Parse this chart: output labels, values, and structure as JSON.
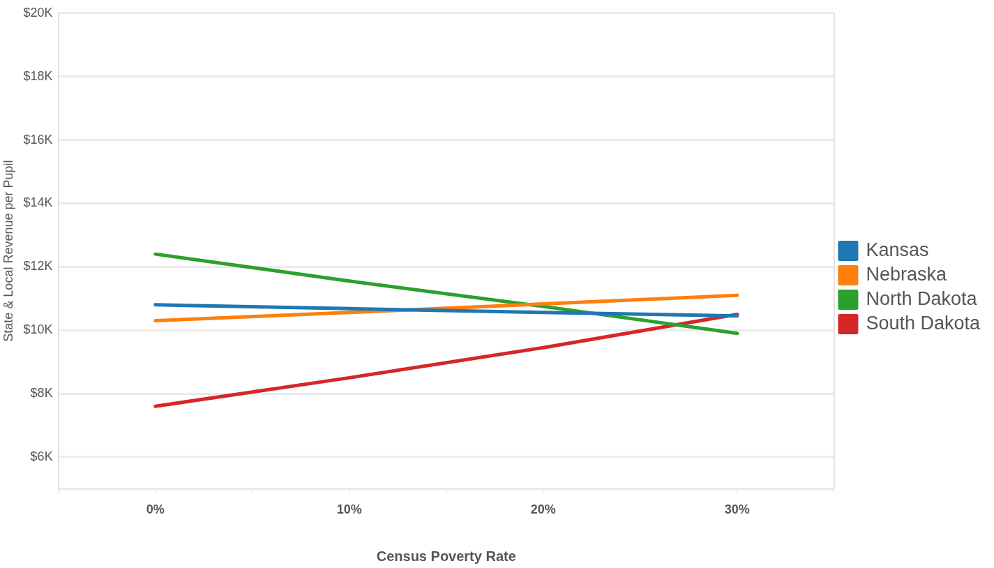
{
  "chart_data": {
    "type": "line",
    "xlabel": "Census Poverty Rate",
    "ylabel": "State & Local Revenue per Pupil",
    "x": [
      0,
      10,
      20,
      30
    ],
    "xlim": [
      -5,
      35
    ],
    "xticks": [
      {
        "value": -5,
        "label": null
      },
      {
        "value": 0,
        "label": "0%"
      },
      {
        "value": 5,
        "label": null
      },
      {
        "value": 10,
        "label": "10%"
      },
      {
        "value": 15,
        "label": null
      },
      {
        "value": 20,
        "label": "20%"
      },
      {
        "value": 25,
        "label": null
      },
      {
        "value": 30,
        "label": "30%"
      },
      {
        "value": 35,
        "label": null
      }
    ],
    "ylim": [
      5000,
      20000
    ],
    "yticks": [
      {
        "value": 6000,
        "label": "$6K"
      },
      {
        "value": 8000,
        "label": "$8K"
      },
      {
        "value": 10000,
        "label": "$10K"
      },
      {
        "value": 12000,
        "label": "$12K"
      },
      {
        "value": 14000,
        "label": "$14K"
      },
      {
        "value": 16000,
        "label": "$16K"
      },
      {
        "value": 18000,
        "label": "$18K"
      },
      {
        "value": 20000,
        "label": "$20K"
      }
    ],
    "series": [
      {
        "name": "Kansas",
        "color": "#1f77b4",
        "values": [
          10800,
          10680,
          10560,
          10450
        ]
      },
      {
        "name": "Nebraska",
        "color": "#ff7f0e",
        "values": [
          10300,
          10560,
          10830,
          11100
        ]
      },
      {
        "name": "North Dakota",
        "color": "#2ca02c",
        "values": [
          12400,
          11550,
          10750,
          9900
        ]
      },
      {
        "name": "South Dakota",
        "color": "#d62728",
        "values": [
          7600,
          8500,
          9450,
          10500
        ]
      }
    ],
    "grid": "y",
    "legend": "right",
    "marker": "none",
    "line_style": "solid"
  }
}
